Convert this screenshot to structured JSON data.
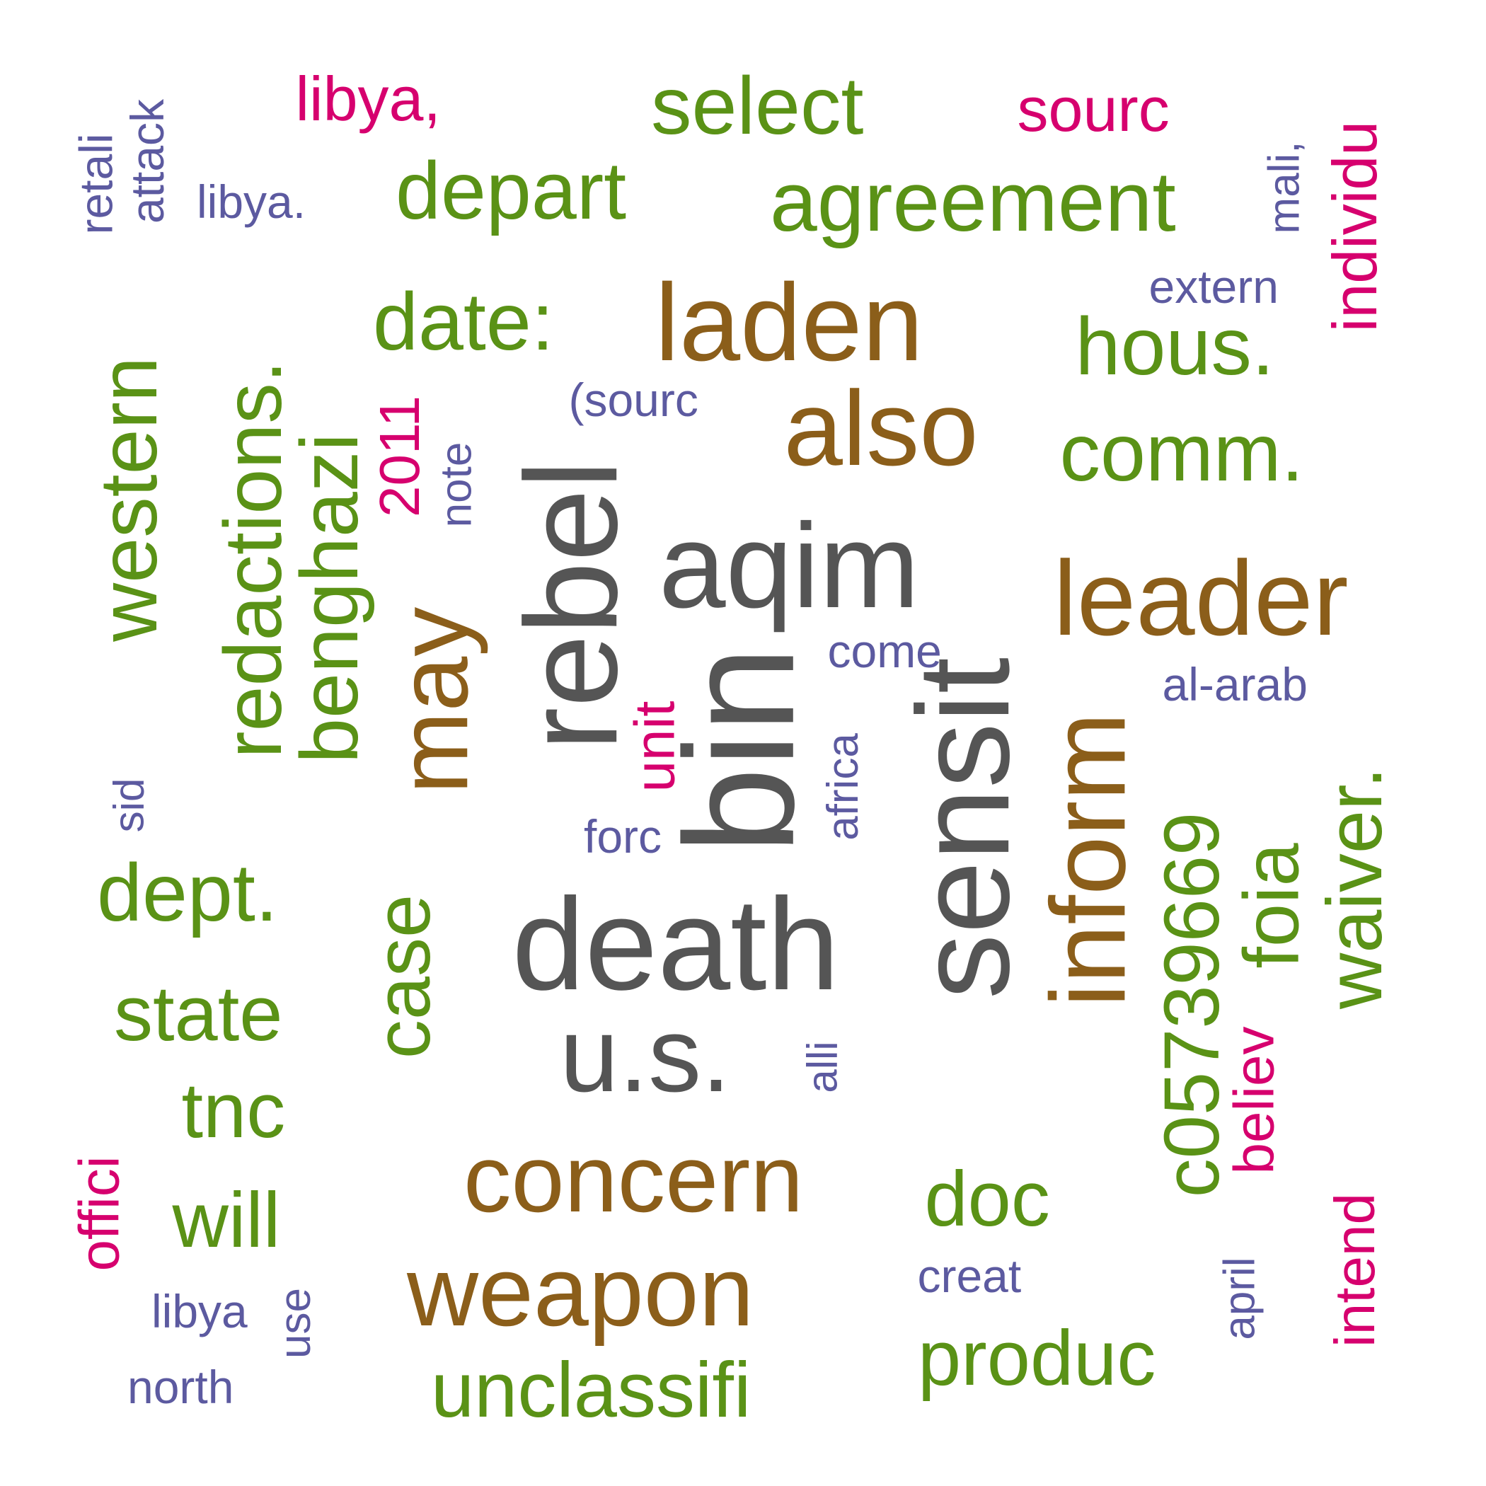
{
  "colors": {
    "gray": "#555555",
    "brown": "#8B5E1A",
    "green": "#5A9216",
    "magenta": "#D6006E",
    "purple": "#5C5AA0"
  },
  "words": [
    {
      "text": "death",
      "color": "gray"
    },
    {
      "text": "u.s.",
      "color": "gray"
    },
    {
      "text": "bin",
      "color": "gray"
    },
    {
      "text": "rebel",
      "color": "gray"
    },
    {
      "text": "aqim",
      "color": "gray"
    },
    {
      "text": "sensit",
      "color": "gray"
    },
    {
      "text": "laden",
      "color": "brown"
    },
    {
      "text": "also",
      "color": "brown"
    },
    {
      "text": "leader",
      "color": "brown"
    },
    {
      "text": "inform",
      "color": "brown"
    },
    {
      "text": "may",
      "color": "brown"
    },
    {
      "text": "concern",
      "color": "brown"
    },
    {
      "text": "weapon",
      "color": "brown"
    },
    {
      "text": "select",
      "color": "green"
    },
    {
      "text": "agreement",
      "color": "green"
    },
    {
      "text": "depart",
      "color": "green"
    },
    {
      "text": "date:",
      "color": "green"
    },
    {
      "text": "hous.",
      "color": "green"
    },
    {
      "text": "comm.",
      "color": "green"
    },
    {
      "text": "western",
      "color": "green"
    },
    {
      "text": "redactions.",
      "color": "green"
    },
    {
      "text": "benghazi",
      "color": "green"
    },
    {
      "text": "dept.",
      "color": "green"
    },
    {
      "text": "state",
      "color": "green"
    },
    {
      "text": "tnc",
      "color": "green"
    },
    {
      "text": "will",
      "color": "green"
    },
    {
      "text": "case",
      "color": "green"
    },
    {
      "text": "doc",
      "color": "green"
    },
    {
      "text": "c05739669",
      "color": "green"
    },
    {
      "text": "foia",
      "color": "green"
    },
    {
      "text": "waiver.",
      "color": "green"
    },
    {
      "text": "produc",
      "color": "green"
    },
    {
      "text": "unclassifi",
      "color": "green"
    },
    {
      "text": "libya,",
      "color": "magenta"
    },
    {
      "text": "sourc",
      "color": "magenta"
    },
    {
      "text": "individu",
      "color": "magenta"
    },
    {
      "text": "2011",
      "color": "magenta"
    },
    {
      "text": "unit",
      "color": "magenta"
    },
    {
      "text": "believ",
      "color": "magenta"
    },
    {
      "text": "intend",
      "color": "magenta"
    },
    {
      "text": "offici",
      "color": "magenta"
    },
    {
      "text": "retali",
      "color": "purple"
    },
    {
      "text": "attack",
      "color": "purple"
    },
    {
      "text": "libya.",
      "color": "purple"
    },
    {
      "text": "mali,",
      "color": "purple"
    },
    {
      "text": "extern",
      "color": "purple"
    },
    {
      "text": "(sourc",
      "color": "purple"
    },
    {
      "text": "note",
      "color": "purple"
    },
    {
      "text": "come",
      "color": "purple"
    },
    {
      "text": "al-arab",
      "color": "purple"
    },
    {
      "text": "sid",
      "color": "purple"
    },
    {
      "text": "forc",
      "color": "purple"
    },
    {
      "text": "africa",
      "color": "purple"
    },
    {
      "text": "alli",
      "color": "purple"
    },
    {
      "text": "creat",
      "color": "purple"
    },
    {
      "text": "april",
      "color": "purple"
    },
    {
      "text": "libya",
      "color": "purple"
    },
    {
      "text": "use",
      "color": "purple"
    },
    {
      "text": "north",
      "color": "purple"
    }
  ]
}
